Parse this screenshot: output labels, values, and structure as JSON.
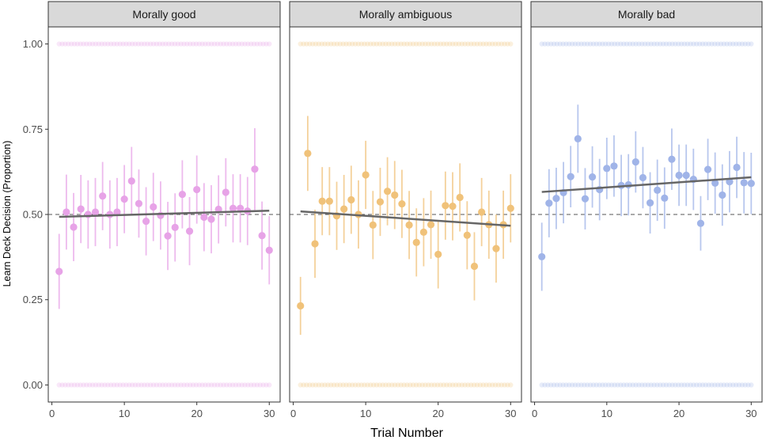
{
  "chart_data": {
    "type": "scatter",
    "xlabel": "Trial Number",
    "ylabel": "Learn Deck Decision (Proportion)",
    "xlim": [
      -0.5,
      31.5
    ],
    "ylim": [
      -0.05,
      1.05
    ],
    "x_ticks": [
      0,
      10,
      20,
      30
    ],
    "y_ticks": [
      0,
      0.25,
      0.5,
      0.75,
      1
    ],
    "x_tick_labels": [
      "0",
      "10",
      "20",
      "30"
    ],
    "y_tick_labels": [
      "0.00",
      "0.25",
      "0.50",
      "0.75",
      "1.00"
    ],
    "reference_line": 0.5,
    "grid": false,
    "panels": [
      {
        "title": "Morally good",
        "color": "#e7a3e7",
        "x": [
          1,
          2,
          3,
          4,
          5,
          6,
          7,
          8,
          9,
          10,
          11,
          12,
          13,
          14,
          15,
          16,
          17,
          18,
          19,
          20,
          21,
          22,
          23,
          24,
          25,
          26,
          27,
          28,
          29,
          30
        ],
        "y": [
          0.333,
          0.507,
          0.463,
          0.516,
          0.5,
          0.507,
          0.554,
          0.5,
          0.507,
          0.545,
          0.598,
          0.532,
          0.48,
          0.522,
          0.497,
          0.437,
          0.462,
          0.559,
          0.451,
          0.573,
          0.492,
          0.486,
          0.515,
          0.565,
          0.518,
          0.518,
          0.51,
          0.633,
          0.438,
          0.395
        ],
        "err": [
          0.11,
          0.11,
          0.1,
          0.1,
          0.1,
          0.1,
          0.1,
          0.1,
          0.1,
          0.1,
          0.1,
          0.1,
          0.1,
          0.1,
          0.1,
          0.1,
          0.1,
          0.1,
          0.1,
          0.1,
          0.1,
          0.1,
          0.1,
          0.1,
          0.1,
          0.1,
          0.1,
          0.12,
          0.1,
          0.1
        ],
        "trend": [
          0.493,
          0.511
        ]
      },
      {
        "title": "Morally ambiguous",
        "color": "#f0c27a",
        "x": [
          1,
          2,
          3,
          4,
          5,
          6,
          7,
          8,
          9,
          10,
          11,
          12,
          13,
          14,
          15,
          16,
          17,
          18,
          19,
          20,
          21,
          22,
          23,
          24,
          25,
          26,
          27,
          28,
          29,
          30
        ],
        "y": [
          0.232,
          0.679,
          0.414,
          0.539,
          0.539,
          0.496,
          0.516,
          0.543,
          0.5,
          0.616,
          0.469,
          0.537,
          0.568,
          0.557,
          0.531,
          0.469,
          0.418,
          0.448,
          0.47,
          0.383,
          0.526,
          0.524,
          0.55,
          0.439,
          0.348,
          0.507,
          0.47,
          0.4,
          0.47,
          0.518
        ],
        "err": [
          0.085,
          0.11,
          0.1,
          0.1,
          0.1,
          0.1,
          0.1,
          0.1,
          0.1,
          0.1,
          0.1,
          0.1,
          0.1,
          0.1,
          0.1,
          0.1,
          0.1,
          0.1,
          0.1,
          0.1,
          0.1,
          0.1,
          0.1,
          0.1,
          0.1,
          0.1,
          0.1,
          0.1,
          0.1,
          0.1
        ],
        "trend": [
          0.509,
          0.467
        ]
      },
      {
        "title": "Morally bad",
        "color": "#a0b4e8",
        "x": [
          1,
          2,
          3,
          4,
          5,
          6,
          7,
          8,
          9,
          10,
          11,
          12,
          13,
          14,
          15,
          16,
          17,
          18,
          19,
          20,
          21,
          22,
          23,
          24,
          25,
          26,
          27,
          28,
          29,
          30
        ],
        "y": [
          0.376,
          0.533,
          0.547,
          0.564,
          0.611,
          0.722,
          0.546,
          0.61,
          0.573,
          0.635,
          0.642,
          0.585,
          0.587,
          0.654,
          0.608,
          0.534,
          0.571,
          0.548,
          0.662,
          0.615,
          0.615,
          0.603,
          0.474,
          0.632,
          0.592,
          0.557,
          0.596,
          0.638,
          0.593,
          0.591
        ],
        "err": [
          0.1,
          0.1,
          0.09,
          0.09,
          0.09,
          0.1,
          0.09,
          0.09,
          0.09,
          0.09,
          0.09,
          0.09,
          0.09,
          0.09,
          0.09,
          0.09,
          0.09,
          0.09,
          0.09,
          0.09,
          0.09,
          0.09,
          0.08,
          0.09,
          0.09,
          0.09,
          0.09,
          0.09,
          0.09,
          0.09
        ],
        "trend": [
          0.566,
          0.609
        ]
      }
    ]
  }
}
